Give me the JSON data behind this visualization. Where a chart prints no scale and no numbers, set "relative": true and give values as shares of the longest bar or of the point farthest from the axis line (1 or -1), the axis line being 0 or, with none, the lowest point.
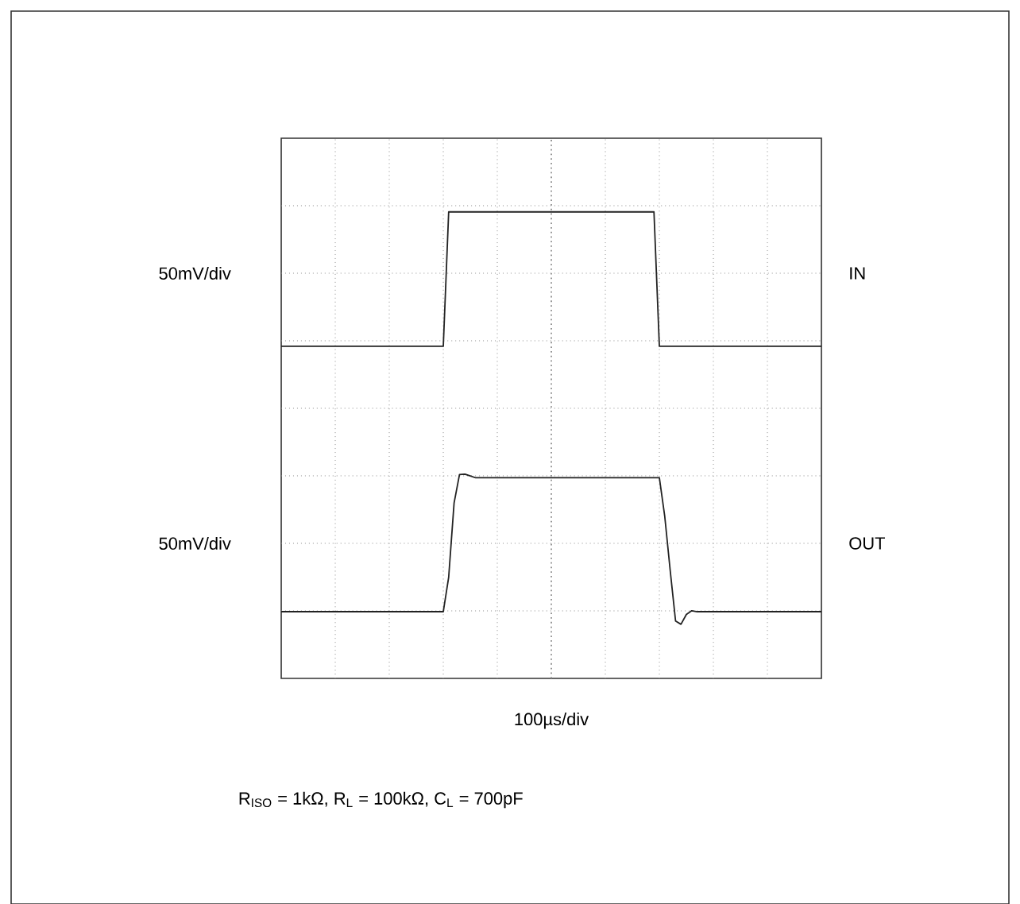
{
  "chart_data": {
    "type": "line",
    "relative": true,
    "grid": true,
    "xlabel": "100µs/div",
    "annotations": [
      "50mV/div",
      "50mV/div",
      "R$_{ISO}$ = 1kΩ, R$_{L}$ = 100kΩ, C$_{L}$ = 700pF"
    ],
    "categories": [
      null,
      null,
      null,
      null,
      null,
      null,
      null,
      null,
      null,
      null,
      null,
      null,
      null,
      null,
      null,
      null,
      null,
      null,
      null,
      null,
      null,
      null,
      null,
      null,
      null,
      null,
      null,
      null,
      null,
      null,
      null,
      null,
      null,
      null,
      null,
      null,
      null,
      null,
      null,
      null,
      null,
      null,
      null,
      null,
      null,
      null,
      null,
      null,
      null,
      null,
      null,
      null,
      null,
      null,
      null,
      null,
      null,
      null,
      null,
      null,
      null,
      null,
      null,
      null,
      null,
      null,
      null,
      null,
      null,
      null,
      null,
      null,
      null,
      null,
      null,
      null,
      null,
      null,
      null,
      null,
      null,
      null,
      null,
      null,
      null,
      null,
      null,
      null,
      null,
      null,
      null,
      null,
      null,
      null,
      null,
      null,
      null,
      null,
      null,
      null,
      null
    ],
    "series": [
      {
        "name": "IN",
        "color": "#222222",
        "values": [
          0.712,
          0.712,
          0.712,
          0.712,
          0.712,
          0.712,
          0.712,
          0.712,
          0.712,
          0.712,
          0.712,
          0.712,
          0.712,
          0.712,
          0.712,
          0.712,
          0.712,
          0.712,
          0.712,
          0.712,
          0.712,
          0.712,
          0.712,
          0.712,
          0.712,
          0.712,
          0.712,
          0.712,
          0.712,
          0.712,
          0.712,
          1,
          1,
          1,
          1,
          1,
          1,
          1,
          1,
          1,
          1,
          1,
          1,
          1,
          1,
          1,
          1,
          1,
          1,
          1,
          1,
          1,
          1,
          1,
          1,
          1,
          1,
          1,
          1,
          1,
          1,
          1,
          1,
          1,
          1,
          1,
          1,
          1,
          1,
          1,
          0.712,
          0.712,
          0.712,
          0.712,
          0.712,
          0.712,
          0.712,
          0.712,
          0.712,
          0.712,
          0.712,
          0.712,
          0.712,
          0.712,
          0.712,
          0.712,
          0.712,
          0.712,
          0.712,
          0.712,
          0.712,
          0.712,
          0.712,
          0.712,
          0.712,
          0.712,
          0.712,
          0.712,
          0.712,
          0.712,
          0.712
        ]
      },
      {
        "name": "OUT",
        "color": "#222222",
        "values": [
          0.143,
          0.143,
          0.143,
          0.143,
          0.143,
          0.143,
          0.143,
          0.143,
          0.143,
          0.143,
          0.143,
          0.143,
          0.143,
          0.143,
          0.143,
          0.143,
          0.143,
          0.143,
          0.143,
          0.143,
          0.143,
          0.143,
          0.143,
          0.143,
          0.143,
          0.143,
          0.143,
          0.143,
          0.143,
          0.143,
          0.143,
          0.217,
          0.376,
          0.437,
          0.438,
          0.434,
          0.43,
          0.43,
          0.43,
          0.43,
          0.43,
          0.43,
          0.43,
          0.43,
          0.43,
          0.43,
          0.43,
          0.43,
          0.43,
          0.43,
          0.43,
          0.43,
          0.43,
          0.43,
          0.43,
          0.43,
          0.43,
          0.43,
          0.43,
          0.43,
          0.43,
          0.43,
          0.43,
          0.43,
          0.43,
          0.43,
          0.43,
          0.43,
          0.43,
          0.43,
          0.43,
          0.347,
          0.232,
          0.123,
          0.116,
          0.137,
          0.145,
          0.143,
          0.143,
          0.143,
          0.143,
          0.143,
          0.143,
          0.143,
          0.143,
          0.143,
          0.143,
          0.143,
          0.143,
          0.143,
          0.143,
          0.143,
          0.143,
          0.143,
          0.143,
          0.143,
          0.143,
          0.143,
          0.143,
          0.143,
          0.143
        ]
      }
    ]
  }
}
